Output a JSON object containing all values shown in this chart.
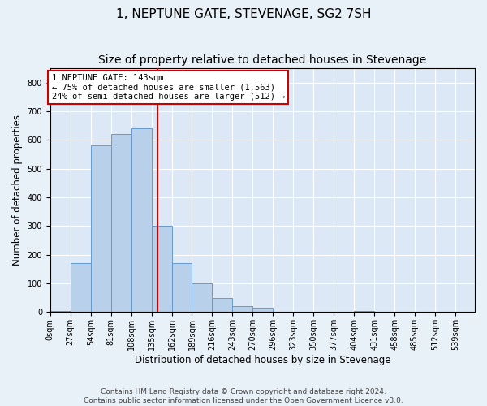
{
  "title": "1, NEPTUNE GATE, STEVENAGE, SG2 7SH",
  "subtitle": "Size of property relative to detached houses in Stevenage",
  "xlabel": "Distribution of detached houses by size in Stevenage",
  "ylabel": "Number of detached properties",
  "footer_line1": "Contains HM Land Registry data © Crown copyright and database right 2024.",
  "footer_line2": "Contains public sector information licensed under the Open Government Licence v3.0.",
  "bin_labels": [
    "0sqm",
    "27sqm",
    "54sqm",
    "81sqm",
    "108sqm",
    "135sqm",
    "162sqm",
    "189sqm",
    "216sqm",
    "243sqm",
    "270sqm",
    "296sqm",
    "323sqm",
    "350sqm",
    "377sqm",
    "404sqm",
    "431sqm",
    "458sqm",
    "485sqm",
    "512sqm",
    "539sqm"
  ],
  "bar_values": [
    5,
    170,
    580,
    620,
    640,
    300,
    170,
    100,
    50,
    20,
    15,
    0,
    0,
    0,
    0,
    5,
    0,
    0,
    0,
    0
  ],
  "bar_color": "#b8d0ea",
  "bar_edge_color": "#6699cc",
  "property_line_x": 143,
  "property_line_color": "#cc0000",
  "annotation_text": "1 NEPTUNE GATE: 143sqm\n← 75% of detached houses are smaller (1,563)\n24% of semi-detached houses are larger (512) →",
  "annotation_box_edgecolor": "#cc0000",
  "ylim": [
    0,
    850
  ],
  "yticks": [
    0,
    100,
    200,
    300,
    400,
    500,
    600,
    700,
    800
  ],
  "xlim": [
    0,
    566
  ],
  "bg_color": "#e8f0f8",
  "plot_bg_color": "#dce8f5",
  "grid_color": "#ffffff",
  "title_fontsize": 11,
  "subtitle_fontsize": 10,
  "axis_label_fontsize": 8.5,
  "tick_fontsize": 7,
  "footer_fontsize": 6.5,
  "annotation_fontsize": 7.5
}
